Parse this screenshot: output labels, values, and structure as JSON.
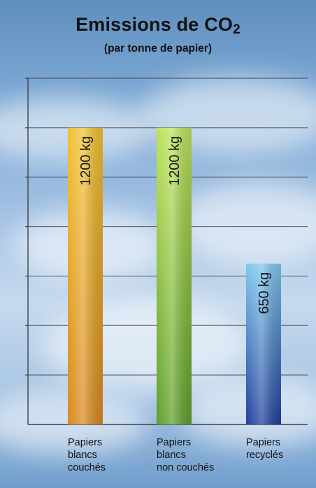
{
  "chart_data": {
    "type": "bar",
    "title": "Emissions de CO",
    "title_subscript": "2",
    "subtitle": "(par tonne de papier)",
    "unit": "kg",
    "categories": [
      "Papiers blancs couchés",
      "Papiers blancs non couchés",
      "Papiers recyclés"
    ],
    "category_lines": [
      [
        "Papiers",
        "blancs",
        "couchés"
      ],
      [
        "Papiers",
        "blancs",
        "non couchés"
      ],
      [
        "Papiers",
        "recyclés"
      ]
    ],
    "values": [
      1200,
      1200,
      650
    ],
    "value_labels": [
      "1200 kg",
      "1200 kg",
      "650 kg"
    ],
    "bar_colors": [
      [
        "#f2c232",
        "#d9891f"
      ],
      [
        "#bde35a",
        "#5f9f2a"
      ],
      [
        "#7fc7ee",
        "#1f3f9c"
      ]
    ],
    "ylim": [
      0,
      1400
    ],
    "grid": true,
    "legend": "none"
  }
}
